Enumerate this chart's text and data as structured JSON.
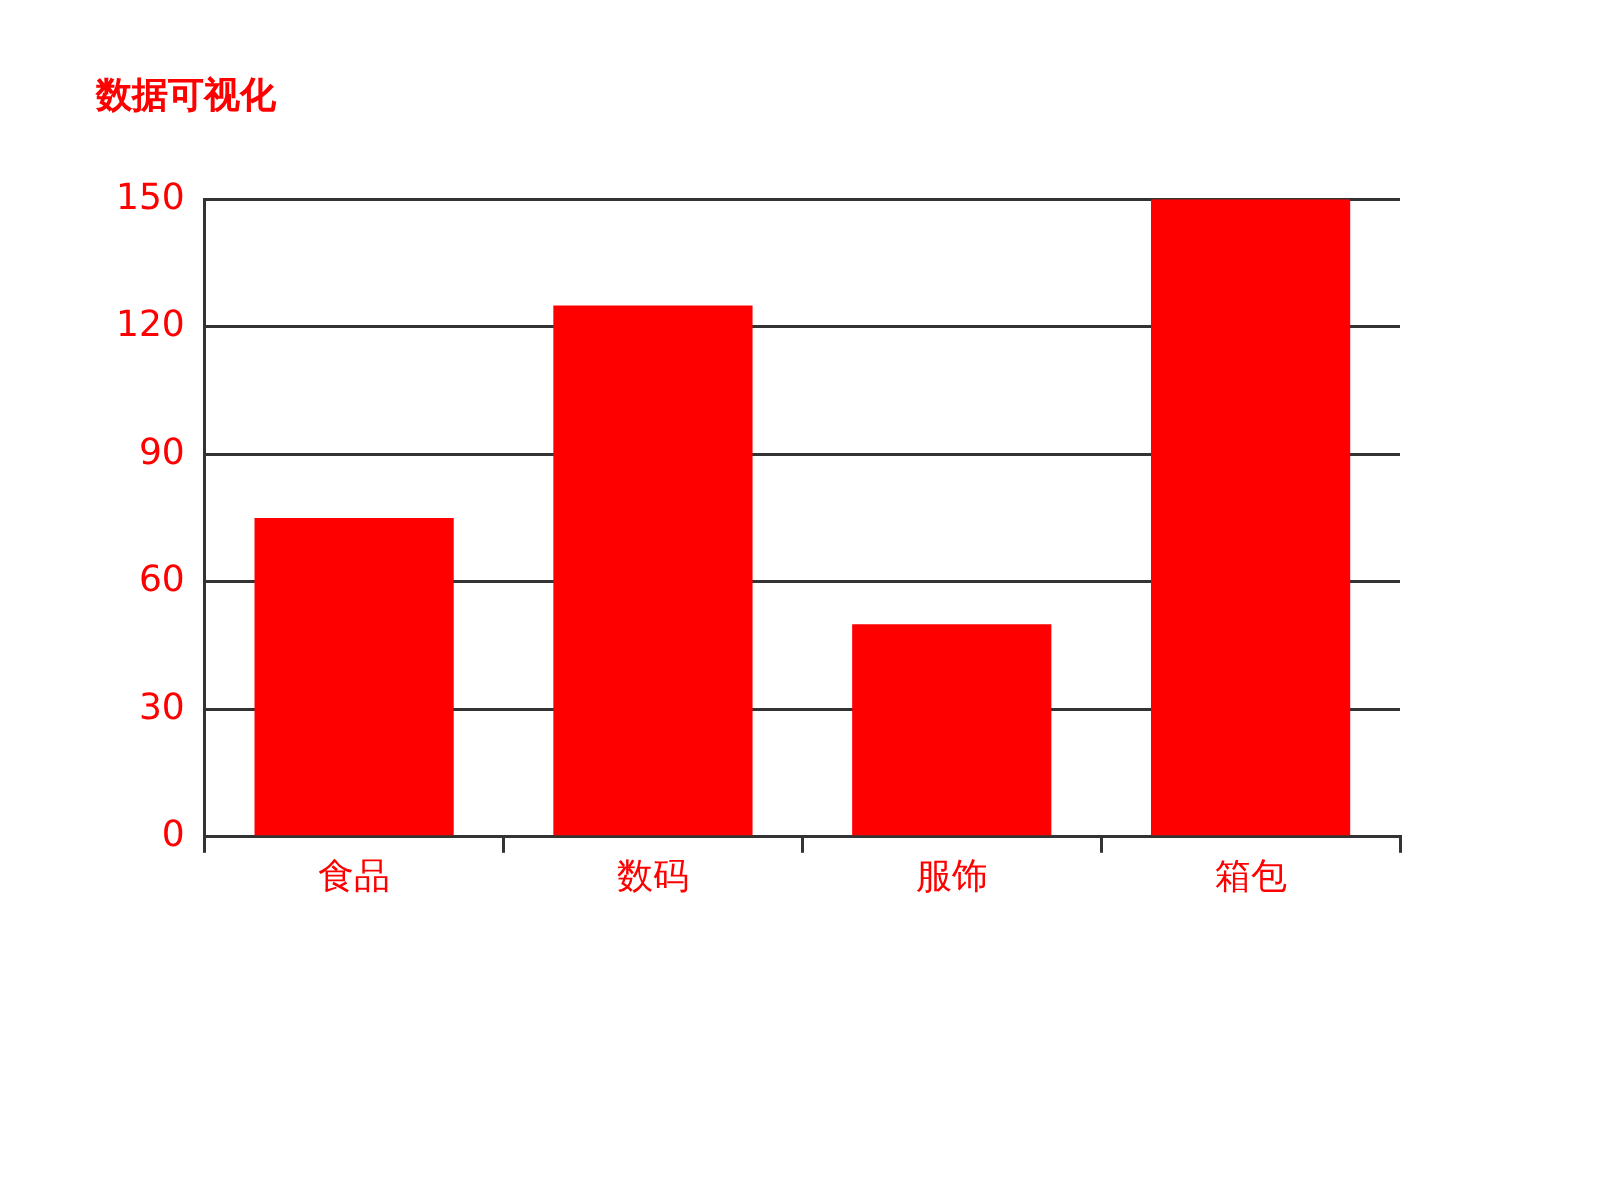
{
  "chart_data": {
    "type": "bar",
    "title": "数据可视化",
    "categories": [
      "食品",
      "数码",
      "服饰",
      "箱包"
    ],
    "values": [
      75,
      125,
      50,
      150
    ],
    "color": "#ff0000",
    "ylim": [
      0,
      150
    ],
    "yticks": [
      0,
      30,
      60,
      90,
      120,
      150
    ],
    "grid": "y",
    "legend": false
  }
}
